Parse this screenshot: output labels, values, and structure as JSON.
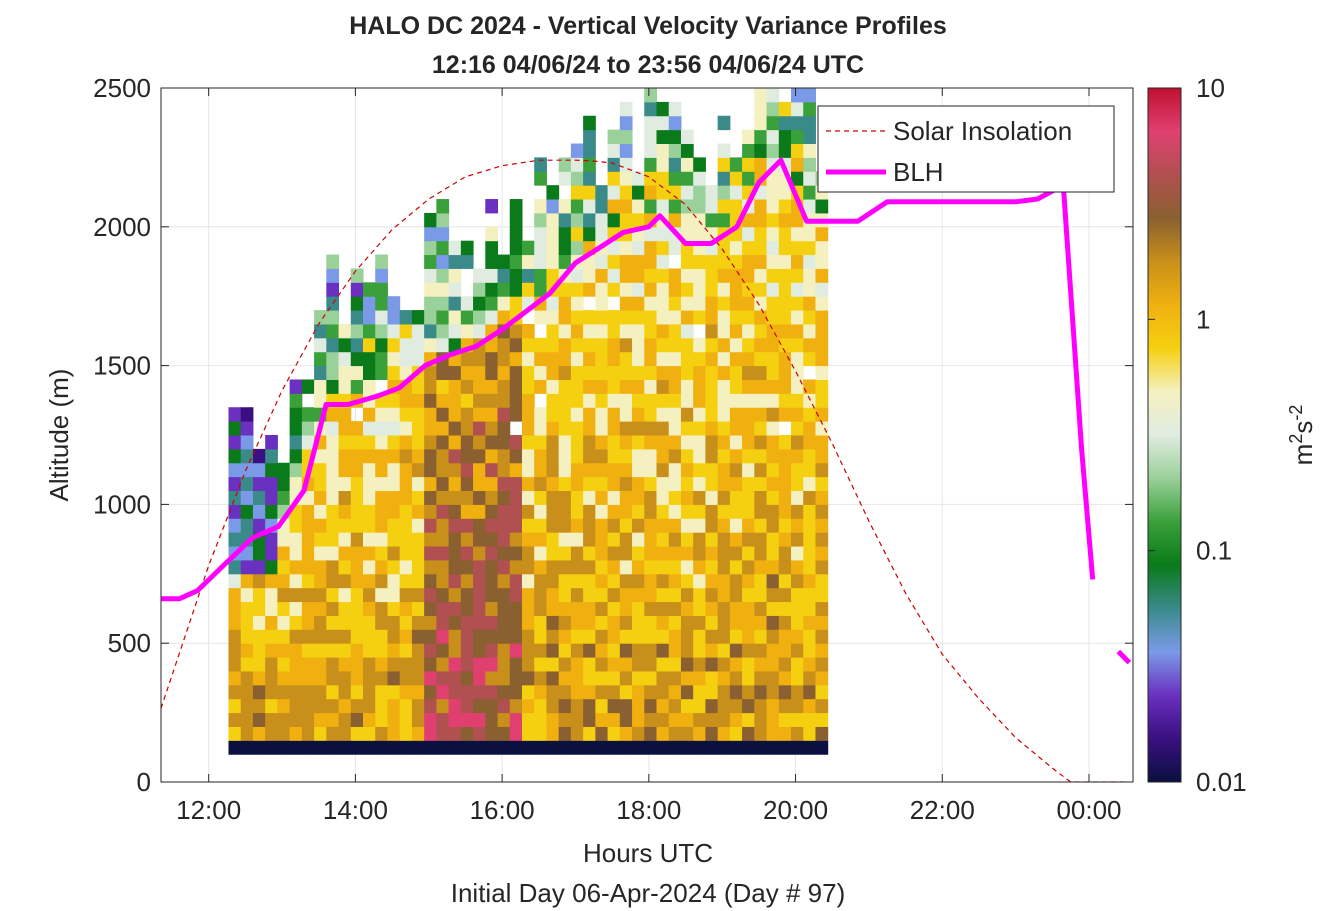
{
  "chart_data": {
    "type": "heatmap",
    "title": "HALO DC 2024 - Vertical Velocity Variance Profiles",
    "subtitle": "12:16 04/06/24 to 23:56 04/06/24  UTC",
    "xlabel": "Hours UTC",
    "xlabel2": "Initial Day 06-Apr-2024 (Day # 97)",
    "ylabel": "Altitude (m)",
    "xlim": [
      11.35,
      24.6
    ],
    "ylim": [
      0,
      2500
    ],
    "x_ticks": [
      12,
      14,
      16,
      18,
      20,
      22,
      24
    ],
    "x_tick_labels": [
      "12:00",
      "14:00",
      "16:00",
      "18:00",
      "20:00",
      "22:00",
      "00:00"
    ],
    "y_ticks": [
      0,
      500,
      1000,
      1500,
      2000,
      2500
    ],
    "y_tick_labels": [
      "0",
      "500",
      "1000",
      "1500",
      "2000",
      "2500"
    ],
    "grid": true,
    "legend_position": "top-right",
    "colorbar": {
      "label": "m²s⁻²",
      "scale": "log",
      "range": [
        0.01,
        10
      ],
      "tick_labels": [
        "0.01",
        "0.1",
        "1",
        "10"
      ],
      "colors": [
        "#0a1040",
        "#3a1080",
        "#6a30c0",
        "#7a9ae8",
        "#3a8a8a",
        "#0a7a1a",
        "#3aa03a",
        "#9ad09a",
        "#e0ece0",
        "#f5f0c0",
        "#f5d010",
        "#f0b010",
        "#c8901a",
        "#8a6030",
        "#b05050",
        "#e04070",
        "#c01030"
      ]
    },
    "series": [
      {
        "name": "Solar Insolation",
        "style": "dashed",
        "color": "#cc0000",
        "x": [
          11.35,
          12.0,
          12.5,
          13.0,
          13.5,
          14.0,
          14.5,
          15.0,
          15.5,
          16.0,
          16.5,
          17.0,
          17.2,
          17.5,
          18.0,
          18.5,
          19.0,
          19.5,
          20.0,
          20.5,
          21.0,
          21.5,
          22.0,
          22.5,
          23.0,
          23.5,
          23.75,
          24.0,
          24.5
        ],
        "y": [
          265,
          780,
          1120,
          1410,
          1650,
          1840,
          1990,
          2100,
          2180,
          2220,
          2240,
          2240,
          2238,
          2230,
          2180,
          2080,
          1920,
          1720,
          1480,
          1220,
          940,
          680,
          460,
          300,
          160,
          50,
          0,
          0,
          0
        ]
      },
      {
        "name": "BLH",
        "style": "solid",
        "color": "#ff00ff",
        "x": [
          11.35,
          11.6,
          11.85,
          12.2,
          12.6,
          12.95,
          13.3,
          13.6,
          13.9,
          14.3,
          14.6,
          14.95,
          15.3,
          15.65,
          16.0,
          16.35,
          16.65,
          17.0,
          17.3,
          17.65,
          18.0,
          18.15,
          18.5,
          18.85,
          19.2,
          19.5,
          19.8,
          20.15,
          20.5,
          20.85,
          21.25,
          21.6,
          21.95,
          22.3,
          22.65,
          23.0,
          23.3,
          23.65,
          23.9,
          24.05
        ],
        "y": [
          660,
          660,
          690,
          780,
          880,
          920,
          1050,
          1360,
          1360,
          1390,
          1420,
          1500,
          1540,
          1570,
          1630,
          1700,
          1760,
          1870,
          1920,
          1980,
          2000,
          2040,
          1940,
          1940,
          2000,
          2160,
          2240,
          2020,
          2020,
          2020,
          2090,
          2090,
          2090,
          2090,
          2090,
          2090,
          2100,
          2150,
          1200,
          730
        ]
      }
    ],
    "blh_extra_segment": {
      "x": [
        24.4,
        24.55
      ],
      "y": [
        470,
        430
      ]
    },
    "heatmap": {
      "time_start": 12.27,
      "time_step": 0.1667,
      "alt_bins_m": [
        100,
        2500
      ],
      "bin_height_m": 50,
      "note": "vertical velocity variance, log scale, profile time columns"
    }
  }
}
